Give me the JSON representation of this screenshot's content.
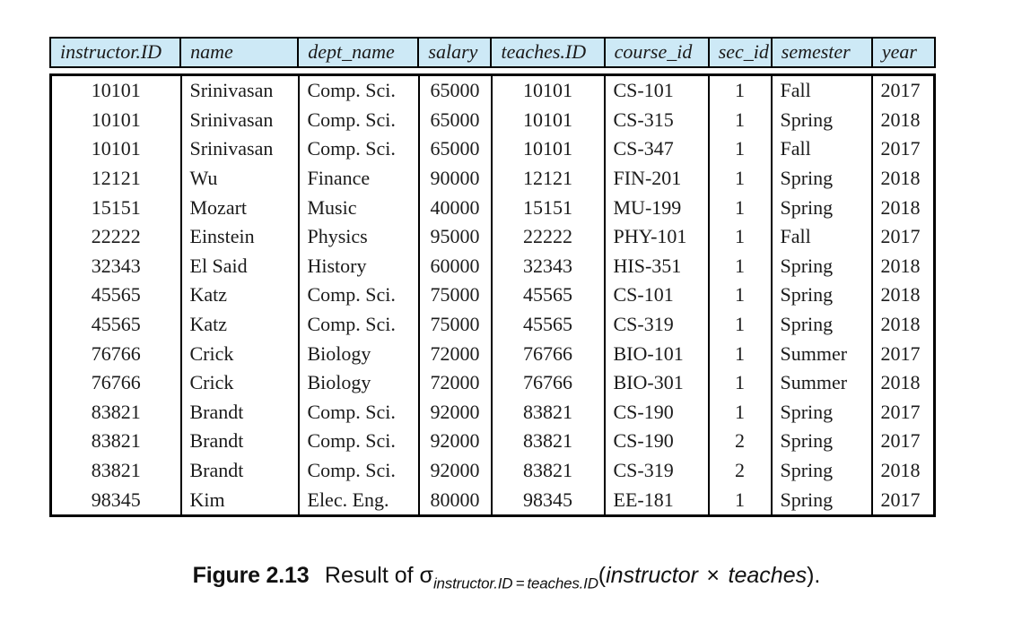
{
  "table": {
    "columns": [
      {
        "key": "instructor-id",
        "label": "instructor.ID",
        "align": "center"
      },
      {
        "key": "name",
        "label": "name",
        "align": "left"
      },
      {
        "key": "dept-name",
        "label": "dept_name",
        "align": "left"
      },
      {
        "key": "salary",
        "label": "salary",
        "align": "center"
      },
      {
        "key": "teaches-id",
        "label": "teaches.ID",
        "align": "center"
      },
      {
        "key": "course-id",
        "label": "course_id",
        "align": "left"
      },
      {
        "key": "sec-id",
        "label": "sec_id",
        "align": "center"
      },
      {
        "key": "semester",
        "label": "semester",
        "align": "left"
      },
      {
        "key": "year",
        "label": "year",
        "align": "left"
      }
    ],
    "rows": [
      [
        "10101",
        "Srinivasan",
        "Comp. Sci.",
        "65000",
        "10101",
        "CS-101",
        "1",
        "Fall",
        "2017"
      ],
      [
        "10101",
        "Srinivasan",
        "Comp. Sci.",
        "65000",
        "10101",
        "CS-315",
        "1",
        "Spring",
        "2018"
      ],
      [
        "10101",
        "Srinivasan",
        "Comp. Sci.",
        "65000",
        "10101",
        "CS-347",
        "1",
        "Fall",
        "2017"
      ],
      [
        "12121",
        "Wu",
        "Finance",
        "90000",
        "12121",
        "FIN-201",
        "1",
        "Spring",
        "2018"
      ],
      [
        "15151",
        "Mozart",
        "Music",
        "40000",
        "15151",
        "MU-199",
        "1",
        "Spring",
        "2018"
      ],
      [
        "22222",
        "Einstein",
        "Physics",
        "95000",
        "22222",
        "PHY-101",
        "1",
        "Fall",
        "2017"
      ],
      [
        "32343",
        "El Said",
        "History",
        "60000",
        "32343",
        "HIS-351",
        "1",
        "Spring",
        "2018"
      ],
      [
        "45565",
        "Katz",
        "Comp. Sci.",
        "75000",
        "45565",
        "CS-101",
        "1",
        "Spring",
        "2018"
      ],
      [
        "45565",
        "Katz",
        "Comp. Sci.",
        "75000",
        "45565",
        "CS-319",
        "1",
        "Spring",
        "2018"
      ],
      [
        "76766",
        "Crick",
        "Biology",
        "72000",
        "76766",
        "BIO-101",
        "1",
        "Summer",
        "2017"
      ],
      [
        "76766",
        "Crick",
        "Biology",
        "72000",
        "76766",
        "BIO-301",
        "1",
        "Summer",
        "2018"
      ],
      [
        "83821",
        "Brandt",
        "Comp. Sci.",
        "92000",
        "83821",
        "CS-190",
        "1",
        "Spring",
        "2017"
      ],
      [
        "83821",
        "Brandt",
        "Comp. Sci.",
        "92000",
        "83821",
        "CS-190",
        "2",
        "Spring",
        "2017"
      ],
      [
        "83821",
        "Brandt",
        "Comp. Sci.",
        "92000",
        "83821",
        "CS-319",
        "2",
        "Spring",
        "2018"
      ],
      [
        "98345",
        "Kim",
        "Elec. Eng.",
        "80000",
        "98345",
        "EE-181",
        "1",
        "Spring",
        "2017"
      ]
    ]
  },
  "caption": {
    "figure_label": "Figure 2.13",
    "prefix": "Result of ",
    "sigma": "σ",
    "subscript": "instructor.ID = teaches.ID",
    "open_paren": "(",
    "operand_left": "instructor",
    "times": "×",
    "operand_right": "teaches",
    "close_paren": ")."
  },
  "colors": {
    "header_bg": "#cde9f6",
    "border": "#000000",
    "text": "#1b1b1b"
  }
}
